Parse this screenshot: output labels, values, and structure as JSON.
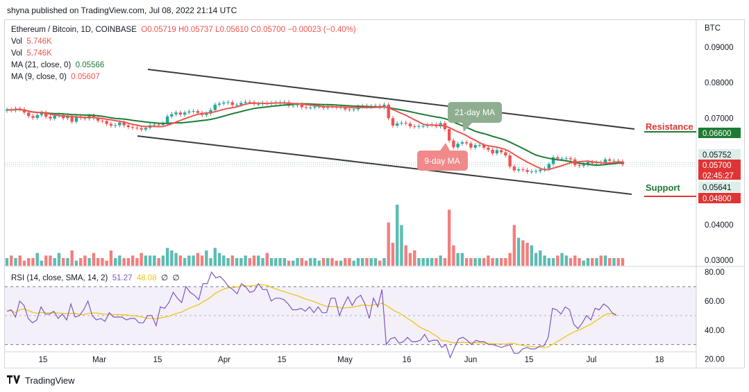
{
  "header": {
    "published": "shyna published on TradingView.com, Jul 08, 2022 21:14 UTC"
  },
  "legend": {
    "symbol": "Ethereum / Bitcoin, 1D, COINBASE",
    "ohlc": "O0.05719  H0.05737  L0.05610  C0.05700  −0.00023 (−0.40%)",
    "vol1_label": "Vol",
    "vol1_value": "5.746K",
    "vol2_label": "Vol",
    "vol2_value": "5.746K",
    "ma21_label": "MA (21, close, 0)",
    "ma21_value": "0.05566",
    "ma9_label": "MA (9, close, 0)",
    "ma9_value": "0.05607"
  },
  "rsi_legend": {
    "label": "RSI (14, close, SMA, 14, 2)",
    "rsi_value": "51.27",
    "sma_value": "48.08",
    "extra1": "∅",
    "extra2": "∅"
  },
  "annotations": {
    "ma21": "21-day MA",
    "ma9": "9-day MA",
    "resistance": "Resistance",
    "support": "Support"
  },
  "price_axis": {
    "currency": "BTC",
    "ticks": [
      "0.09000",
      "0.08000",
      "0.07000",
      "0.04000",
      "0.03000"
    ],
    "badge_resistance": "0.06600",
    "badge_57752": "0.05752",
    "badge_current": "0.05700",
    "badge_countdown": "02:45:27",
    "badge_56641": "0.05641",
    "badge_support": "0.04800"
  },
  "rsi_axis": {
    "ticks": [
      "80.00",
      "60.00",
      "40.00",
      "20.00"
    ]
  },
  "time_axis": {
    "ticks": [
      "15",
      "Mar",
      "15",
      "Apr",
      "15",
      "May",
      "16",
      "Jun",
      "15",
      "Jul",
      "18"
    ]
  },
  "footer": {
    "brand": "TradingView"
  },
  "colors": {
    "up": "#26a69a",
    "down": "#ef5350",
    "ma21": "#1e7b34",
    "ma9": "#ef5350",
    "rsi": "#7e57c2",
    "rsi_sma": "#f0c419",
    "channel": "#3b3b3b",
    "badge_green": "#1e7b34",
    "badge_red": "#e03434"
  },
  "chart_data": {
    "type": "candlestick",
    "title": "Ethereum / Bitcoin, 1D, COINBASE",
    "x_labels": [
      "15",
      "Mar",
      "15",
      "Apr",
      "15",
      "May",
      "16",
      "Jun",
      "15",
      "Jul",
      "18"
    ],
    "price_range": [
      0.028,
      0.094
    ],
    "close_series": [
      0.0724,
      0.0722,
      0.0727,
      0.0725,
      0.0716,
      0.0706,
      0.0701,
      0.0709,
      0.0716,
      0.0704,
      0.0699,
      0.0707,
      0.0709,
      0.07,
      0.0706,
      0.069,
      0.0705,
      0.0701,
      0.0699,
      0.0707,
      0.07,
      0.0693,
      0.0692,
      0.0684,
      0.0679,
      0.068,
      0.0688,
      0.068,
      0.0675,
      0.0673,
      0.0672,
      0.0668,
      0.0673,
      0.068,
      0.0682,
      0.0681,
      0.0686,
      0.0705,
      0.0711,
      0.0716,
      0.071,
      0.0716,
      0.0719,
      0.072,
      0.0715,
      0.0709,
      0.0713,
      0.0723,
      0.0738,
      0.0741,
      0.0744,
      0.0745,
      0.0737,
      0.0738,
      0.0743,
      0.0746,
      0.0745,
      0.074,
      0.074,
      0.0743,
      0.0741,
      0.0743,
      0.0744,
      0.0744,
      0.0745,
      0.0735,
      0.0736,
      0.0738,
      0.0731,
      0.073,
      0.073,
      0.0733,
      0.0733,
      0.0729,
      0.0734,
      0.0733,
      0.0731,
      0.0731,
      0.0725,
      0.0724,
      0.0725,
      0.0733,
      0.0735,
      0.0732,
      0.0734,
      0.0735,
      0.0731,
      0.0738,
      0.07,
      0.0679,
      0.0685,
      0.0687,
      0.0685,
      0.0677,
      0.0676,
      0.0678,
      0.0678,
      0.0681,
      0.0682,
      0.0677,
      0.0686,
      0.0669,
      0.0637,
      0.0618,
      0.0628,
      0.0632,
      0.0629,
      0.0617,
      0.0624,
      0.0624,
      0.0617,
      0.0611,
      0.0601,
      0.061,
      0.0604,
      0.0595,
      0.0564,
      0.0553,
      0.0556,
      0.0554,
      0.0549,
      0.055,
      0.0551,
      0.0555,
      0.0558,
      0.0571,
      0.059,
      0.0586,
      0.0586,
      0.0587,
      0.0584,
      0.0568,
      0.0566,
      0.0569,
      0.0576,
      0.0573,
      0.0575,
      0.0573,
      0.0584,
      0.058,
      0.058,
      0.0578,
      0.057
    ],
    "ma21": {
      "label": "MA (21, close, 0)",
      "last": 0.05566
    },
    "ma9": {
      "label": "MA (9, close, 0)",
      "last": 0.05607
    },
    "levels": {
      "resistance": 0.066,
      "support": 0.048,
      "price_a": 0.05752,
      "current": 0.057,
      "price_b": 0.05641
    },
    "volume": [
      3,
      4,
      3,
      4,
      2,
      3,
      3,
      5,
      2,
      4,
      4,
      3,
      5,
      3,
      3,
      6,
      2,
      3,
      4,
      3,
      5,
      3,
      3,
      2,
      6,
      3,
      4,
      3,
      3,
      4,
      3,
      5,
      4,
      4,
      4,
      3,
      4,
      7,
      6,
      5,
      4,
      3,
      4,
      4,
      5,
      4,
      6,
      3,
      7,
      5,
      4,
      3,
      4,
      3,
      3,
      4,
      3,
      4,
      4,
      3,
      5,
      3,
      3,
      3,
      3,
      2,
      2,
      3,
      3,
      2,
      3,
      3,
      2,
      3,
      3,
      3,
      2,
      2,
      3,
      3,
      2,
      3,
      3,
      3,
      3,
      3,
      2,
      3,
      17,
      9,
      24,
      16,
      8,
      5,
      6,
      3,
      3,
      3,
      3,
      3,
      4,
      3,
      22,
      8,
      5,
      5,
      3,
      3,
      3,
      3,
      3,
      4,
      3,
      3,
      3,
      3,
      5,
      16,
      11,
      10,
      9,
      8,
      5,
      6,
      4,
      3,
      3,
      4,
      5,
      4,
      3,
      4,
      3,
      2,
      3,
      3,
      3,
      4,
      4,
      3,
      3,
      3,
      3,
      4,
      4,
      4,
      4,
      4,
      5,
      4
    ],
    "rsi": {
      "label": "RSI (14, close, SMA, 14, 2)",
      "last": 51.27,
      "sma_last": 48.08,
      "range": [
        15,
        82
      ],
      "upper_band": 70,
      "lower_band": 30,
      "values": [
        53,
        54,
        49,
        60,
        57,
        48,
        45,
        47,
        56,
        51,
        51,
        53,
        48,
        51,
        47,
        58,
        49,
        50,
        54,
        60,
        50,
        47,
        48,
        46,
        52,
        49,
        49,
        49,
        47,
        48,
        48,
        45,
        45,
        50,
        50,
        43,
        56,
        55,
        59,
        66,
        62,
        59,
        70,
        66,
        64,
        61,
        72,
        72,
        80,
        76,
        77,
        74,
        70,
        68,
        65,
        72,
        70,
        66,
        67,
        72,
        68,
        68,
        60,
        62,
        62,
        61,
        58,
        54,
        54,
        55,
        53,
        56,
        52,
        56,
        52,
        52,
        62,
        62,
        50,
        57,
        63,
        57,
        62,
        64,
        58,
        48,
        62,
        56,
        68,
        30,
        34,
        35,
        31,
        32,
        35,
        32,
        32,
        33,
        37,
        32,
        33,
        33,
        28,
        30,
        21,
        28,
        34,
        35,
        33,
        30,
        33,
        32,
        32,
        30,
        30,
        29,
        28,
        29,
        30,
        24,
        24,
        27,
        28,
        27,
        27,
        29,
        29,
        35,
        55,
        54,
        51,
        56,
        54,
        44,
        41,
        45,
        50,
        47,
        55,
        54,
        58,
        56,
        52,
        50
      ]
    }
  }
}
